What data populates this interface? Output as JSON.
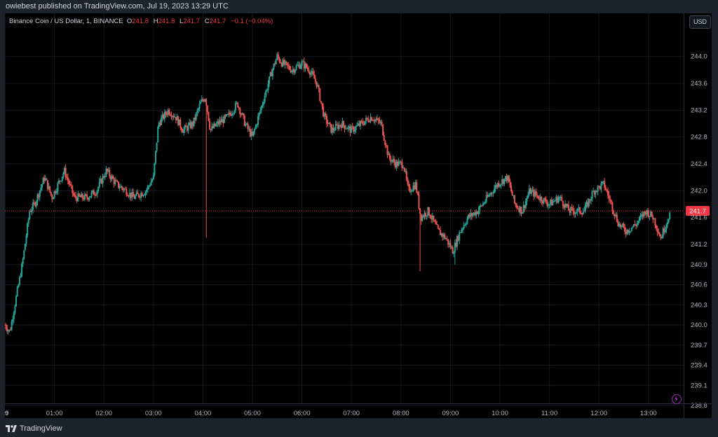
{
  "header": {
    "published_text": "owiebest published on TradingView.com, Jul 19, 2023 13:29 UTC"
  },
  "footer": {
    "brand": "TradingView"
  },
  "toolbar": {
    "currency_label": "USD"
  },
  "legend": {
    "symbol": "Binance Coin / US Dollar, 1, BINANCE",
    "o_label": "O",
    "o_value": "241.8",
    "h_label": "H",
    "h_value": "241.8",
    "l_label": "L",
    "l_value": "241.7",
    "c_label": "C",
    "c_value": "241.7",
    "change": "−0.1 (−0.04%)"
  },
  "colors": {
    "up": "#26a69a",
    "down": "#ef5350",
    "price_line": "#f23645",
    "accent": "#9c27b0"
  },
  "chart_data": {
    "type": "candlestick",
    "interval": "1 minute",
    "current_price": 241.7,
    "current_price_label": "241.7",
    "ylim": [
      238.8,
      244.3
    ],
    "y_ticks": [
      "244.0",
      "243.6",
      "243.2",
      "242.8",
      "242.4",
      "242.0",
      "241.6",
      "241.2",
      "240.9",
      "240.6",
      "240.3",
      "240.0",
      "239.7",
      "239.4",
      "239.1",
      "238.8"
    ],
    "x_ticks": [
      "9",
      "01:00",
      "02:00",
      "03:00",
      "04:00",
      "05:00",
      "06:00",
      "07:00",
      "08:00",
      "09:00",
      "10:00",
      "11:00",
      "12:00",
      "13:00"
    ],
    "x_tick_hours": [
      0,
      1,
      2,
      3,
      4,
      5,
      6,
      7,
      8,
      9,
      10,
      11,
      12,
      13
    ],
    "price_path": [
      {
        "t": 0.0,
        "p": 240.0
      },
      {
        "t": 0.1,
        "p": 239.9
      },
      {
        "t": 0.2,
        "p": 240.3
      },
      {
        "t": 0.35,
        "p": 240.9
      },
      {
        "t": 0.5,
        "p": 241.7
      },
      {
        "t": 0.6,
        "p": 241.8
      },
      {
        "t": 0.8,
        "p": 242.2
      },
      {
        "t": 0.95,
        "p": 241.9
      },
      {
        "t": 1.2,
        "p": 242.3
      },
      {
        "t": 1.4,
        "p": 241.9
      },
      {
        "t": 1.65,
        "p": 241.9
      },
      {
        "t": 1.85,
        "p": 242.0
      },
      {
        "t": 2.05,
        "p": 242.3
      },
      {
        "t": 2.25,
        "p": 242.1
      },
      {
        "t": 2.45,
        "p": 242.0
      },
      {
        "t": 2.6,
        "p": 241.9
      },
      {
        "t": 2.85,
        "p": 242.0
      },
      {
        "t": 3.0,
        "p": 242.2
      },
      {
        "t": 3.1,
        "p": 243.0
      },
      {
        "t": 3.3,
        "p": 243.2
      },
      {
        "t": 3.45,
        "p": 243.1
      },
      {
        "t": 3.6,
        "p": 242.9
      },
      {
        "t": 3.8,
        "p": 243.0
      },
      {
        "t": 3.95,
        "p": 243.3
      },
      {
        "t": 4.05,
        "p": 243.4
      },
      {
        "t": 4.15,
        "p": 242.9
      },
      {
        "t": 4.3,
        "p": 243.0
      },
      {
        "t": 4.5,
        "p": 243.1
      },
      {
        "t": 4.7,
        "p": 243.3
      },
      {
        "t": 4.85,
        "p": 243.0
      },
      {
        "t": 5.0,
        "p": 242.8
      },
      {
        "t": 5.2,
        "p": 243.3
      },
      {
        "t": 5.4,
        "p": 243.8
      },
      {
        "t": 5.5,
        "p": 244.0
      },
      {
        "t": 5.6,
        "p": 243.9
      },
      {
        "t": 5.8,
        "p": 243.8
      },
      {
        "t": 6.0,
        "p": 243.9
      },
      {
        "t": 6.15,
        "p": 243.8
      },
      {
        "t": 6.3,
        "p": 243.6
      },
      {
        "t": 6.45,
        "p": 243.1
      },
      {
        "t": 6.6,
        "p": 242.9
      },
      {
        "t": 6.8,
        "p": 243.0
      },
      {
        "t": 7.0,
        "p": 242.9
      },
      {
        "t": 7.2,
        "p": 243.0
      },
      {
        "t": 7.4,
        "p": 243.1
      },
      {
        "t": 7.6,
        "p": 243.0
      },
      {
        "t": 7.75,
        "p": 242.5
      },
      {
        "t": 7.9,
        "p": 242.4
      },
      {
        "t": 8.05,
        "p": 242.4
      },
      {
        "t": 8.15,
        "p": 242.0
      },
      {
        "t": 8.3,
        "p": 242.1
      },
      {
        "t": 8.4,
        "p": 241.6
      },
      {
        "t": 8.55,
        "p": 241.7
      },
      {
        "t": 8.75,
        "p": 241.4
      },
      {
        "t": 8.9,
        "p": 241.3
      },
      {
        "t": 9.05,
        "p": 241.1
      },
      {
        "t": 9.2,
        "p": 241.4
      },
      {
        "t": 9.35,
        "p": 241.6
      },
      {
        "t": 9.55,
        "p": 241.7
      },
      {
        "t": 9.75,
        "p": 241.9
      },
      {
        "t": 9.95,
        "p": 242.1
      },
      {
        "t": 10.15,
        "p": 242.2
      },
      {
        "t": 10.3,
        "p": 241.8
      },
      {
        "t": 10.45,
        "p": 241.7
      },
      {
        "t": 10.6,
        "p": 242.0
      },
      {
        "t": 10.8,
        "p": 241.9
      },
      {
        "t": 11.0,
        "p": 241.8
      },
      {
        "t": 11.2,
        "p": 241.9
      },
      {
        "t": 11.4,
        "p": 241.7
      },
      {
        "t": 11.55,
        "p": 241.7
      },
      {
        "t": 11.7,
        "p": 241.7
      },
      {
        "t": 11.9,
        "p": 242.0
      },
      {
        "t": 12.1,
        "p": 242.1
      },
      {
        "t": 12.25,
        "p": 241.8
      },
      {
        "t": 12.4,
        "p": 241.5
      },
      {
        "t": 12.55,
        "p": 241.4
      },
      {
        "t": 12.75,
        "p": 241.5
      },
      {
        "t": 12.95,
        "p": 241.7
      },
      {
        "t": 13.1,
        "p": 241.6
      },
      {
        "t": 13.25,
        "p": 241.3
      },
      {
        "t": 13.35,
        "p": 241.5
      },
      {
        "t": 13.45,
        "p": 241.7
      }
    ],
    "wick_spikes": [
      {
        "t": 4.07,
        "low": 241.3
      },
      {
        "t": 8.38,
        "low": 240.8
      },
      {
        "t": 9.08,
        "low": 240.9
      }
    ]
  }
}
